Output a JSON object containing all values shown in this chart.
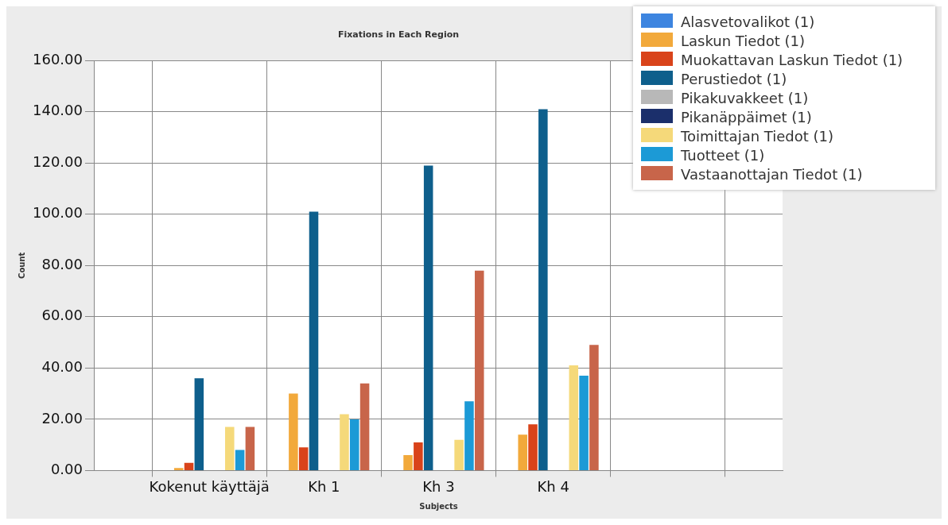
{
  "chart_data": {
    "type": "bar",
    "title": "Fixations in Each Region",
    "xlabel": "Subjects",
    "ylabel": "Count",
    "categories": [
      null,
      "Kokenut käyttäjä",
      "Kh 1",
      "Kh 3",
      "Kh 4",
      null,
      null
    ],
    "series": [
      {
        "name": "Alasvetovalikot (1)",
        "color": "#3d85e0",
        "values": [
          null,
          0,
          0,
          0,
          0,
          null,
          null
        ]
      },
      {
        "name": "Laskun Tiedot (1)",
        "color": "#f2a93b",
        "values": [
          null,
          1,
          30,
          6,
          14,
          null,
          null
        ]
      },
      {
        "name": "Muokattavan Laskun Tiedot (1)",
        "color": "#d9431a",
        "values": [
          null,
          3,
          9,
          11,
          18,
          null,
          null
        ]
      },
      {
        "name": "Perustiedot (1)",
        "color": "#0e5f8c",
        "values": [
          null,
          36,
          101,
          119,
          141,
          null,
          null
        ]
      },
      {
        "name": "Pikakuvakkeet (1)",
        "color": "#b8b8b8",
        "values": [
          null,
          0,
          0,
          0,
          0,
          null,
          null
        ]
      },
      {
        "name": "Pikanäppäimet (1)",
        "color": "#1b2f6b",
        "values": [
          null,
          0,
          0,
          0,
          0,
          null,
          null
        ]
      },
      {
        "name": "Toimittajan Tiedot (1)",
        "color": "#f5d97a",
        "values": [
          null,
          17,
          22,
          12,
          41,
          null,
          null
        ]
      },
      {
        "name": "Tuotteet (1)",
        "color": "#1c9ad6",
        "values": [
          null,
          8,
          20,
          27,
          37,
          null,
          null
        ]
      },
      {
        "name": "Vastaanottajan Tiedot (1)",
        "color": "#c8654a",
        "values": [
          null,
          17,
          34,
          78,
          49,
          null,
          null
        ]
      }
    ],
    "ylim": [
      0,
      160
    ],
    "yticks": [
      {
        "value": 0,
        "label": "0.00"
      },
      {
        "value": 20,
        "label": "20.00"
      },
      {
        "value": 40,
        "label": "40.00"
      },
      {
        "value": 60,
        "label": "60.00"
      },
      {
        "value": 80,
        "label": "80.00"
      },
      {
        "value": 100,
        "label": "100.00"
      },
      {
        "value": 120,
        "label": "120.00"
      },
      {
        "value": 140,
        "label": "140.00"
      },
      {
        "value": 160,
        "label": "160.00"
      }
    ],
    "grid": true,
    "legend": "top right"
  }
}
